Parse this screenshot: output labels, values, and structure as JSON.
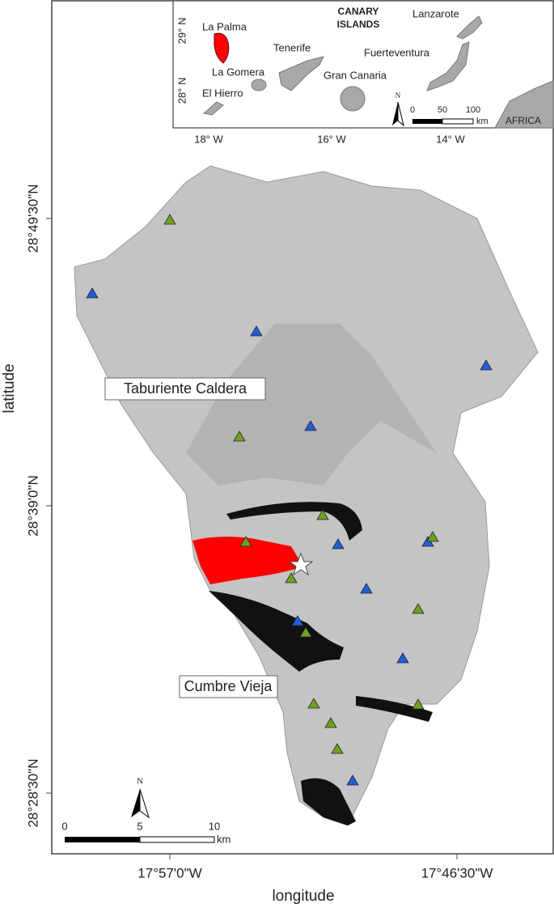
{
  "axes": {
    "x_label": "longitude",
    "y_label": "latitude",
    "x_ticks": [
      "17°57'0\"W",
      "17°46'30\"W"
    ],
    "y_ticks": [
      "28°49'30\"N",
      "28°39'0\"N",
      "28°28'30\"N"
    ]
  },
  "labels": {
    "caldera": "Taburiente Caldera",
    "ridge": "Cumbre Vieja"
  },
  "north": "N",
  "scale_bar": {
    "ticks": [
      0,
      5,
      10
    ],
    "unit": "km"
  },
  "inset": {
    "title_lines": [
      "CANARY",
      "ISLANDS"
    ],
    "islands": [
      "La Palma",
      "La Gomera",
      "El Hierro",
      "Tenerife",
      "Gran Canaria",
      "Fuerteventura",
      "Lanzarote"
    ],
    "continent": "AFRICA",
    "x_ticks": [
      "18° W",
      "16° W",
      "14° W"
    ],
    "y_ticks": [
      "29° N",
      "28° N"
    ],
    "north": "N",
    "scale_bar": {
      "ticks": [
        0,
        50,
        100
      ],
      "unit": "km"
    }
  }
}
